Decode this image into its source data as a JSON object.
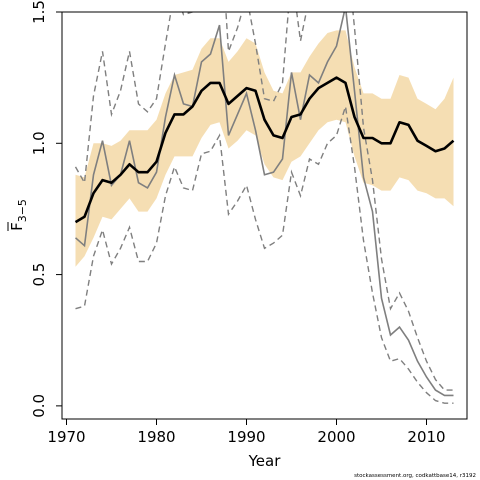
{
  "chart_data": {
    "type": "line",
    "xlabel": "Year",
    "ylabel": "F",
    "ylabel_sub": "3−5",
    "xlim": [
      1969.5,
      2014.5
    ],
    "ylim": [
      -0.05,
      1.5
    ],
    "xticks": [
      "1970",
      "1980",
      "1990",
      "2000",
      "2010"
    ],
    "yticks": [
      "0.0",
      "0.5",
      "1.0",
      "1.5"
    ],
    "x": [
      1971,
      1972,
      1973,
      1974,
      1975,
      1976,
      1977,
      1978,
      1979,
      1980,
      1981,
      1982,
      1983,
      1984,
      1985,
      1986,
      1987,
      1988,
      1989,
      1990,
      1991,
      1992,
      1993,
      1994,
      1995,
      1996,
      1997,
      1998,
      1999,
      2000,
      2001,
      2002,
      2003,
      2004,
      2005,
      2006,
      2007,
      2008,
      2009,
      2010,
      2011,
      2012,
      2013
    ],
    "series": [
      {
        "role": "band",
        "color": "#f5deb3",
        "lower": [
          0.53,
          0.57,
          0.64,
          0.72,
          0.71,
          0.75,
          0.79,
          0.74,
          0.74,
          0.79,
          0.88,
          0.95,
          0.95,
          0.95,
          1.02,
          1.07,
          1.08,
          0.98,
          1.01,
          1.05,
          1.03,
          0.92,
          0.87,
          0.86,
          0.93,
          0.95,
          1.0,
          1.05,
          1.08,
          1.09,
          1.08,
          0.95,
          0.85,
          0.84,
          0.82,
          0.82,
          0.87,
          0.86,
          0.82,
          0.81,
          0.79,
          0.79,
          0.76
        ]
      },
      {
        "role": "band",
        "color": "#f5deb3",
        "upper": [
          0.88,
          0.87,
          1.0,
          1.0,
          0.99,
          1.01,
          1.05,
          1.05,
          1.05,
          1.09,
          1.19,
          1.26,
          1.27,
          1.28,
          1.36,
          1.4,
          1.4,
          1.31,
          1.35,
          1.4,
          1.38,
          1.27,
          1.2,
          1.19,
          1.27,
          1.27,
          1.33,
          1.38,
          1.42,
          1.43,
          1.43,
          1.29,
          1.19,
          1.19,
          1.17,
          1.17,
          1.26,
          1.25,
          1.17,
          1.15,
          1.13,
          1.17,
          1.25
        ]
      },
      {
        "role": "median",
        "color": "#000000",
        "values": [
          0.7,
          0.72,
          0.81,
          0.86,
          0.85,
          0.88,
          0.92,
          0.89,
          0.89,
          0.93,
          1.04,
          1.11,
          1.11,
          1.14,
          1.2,
          1.23,
          1.23,
          1.15,
          1.18,
          1.21,
          1.2,
          1.09,
          1.03,
          1.02,
          1.1,
          1.11,
          1.17,
          1.21,
          1.23,
          1.25,
          1.23,
          1.1,
          1.02,
          1.02,
          1.0,
          1.0,
          1.08,
          1.07,
          1.01,
          0.99,
          0.97,
          0.98,
          1.01
        ]
      },
      {
        "role": "estimate",
        "color": "#7f7f7f",
        "values": [
          0.64,
          0.61,
          0.88,
          1.01,
          0.84,
          0.88,
          1.01,
          0.85,
          0.83,
          0.89,
          1.1,
          1.26,
          1.15,
          1.14,
          1.31,
          1.34,
          1.45,
          1.03,
          1.11,
          1.19,
          1.05,
          0.88,
          0.89,
          0.94,
          1.27,
          1.09,
          1.26,
          1.23,
          1.31,
          1.37,
          1.52,
          1.2,
          0.87,
          0.74,
          0.41,
          0.27,
          0.3,
          0.25,
          0.17,
          0.11,
          0.06,
          0.04,
          0.04
        ]
      },
      {
        "role": "interval",
        "color": "#7f7f7f",
        "values": [
          0.91,
          0.85,
          1.18,
          1.35,
          1.11,
          1.2,
          1.35,
          1.15,
          1.12,
          1.17,
          1.38,
          1.58,
          1.49,
          1.5,
          1.67,
          1.75,
          1.88,
          1.35,
          1.44,
          1.56,
          1.38,
          1.17,
          1.16,
          1.23,
          1.65,
          1.39,
          1.56,
          1.52,
          1.6,
          1.64,
          1.79,
          1.44,
          1.06,
          0.86,
          0.56,
          0.37,
          0.43,
          0.36,
          0.26,
          0.17,
          0.1,
          0.06,
          0.06
        ]
      },
      {
        "role": "interval",
        "color": "#7f7f7f",
        "values": [
          0.37,
          0.38,
          0.57,
          0.67,
          0.54,
          0.6,
          0.68,
          0.55,
          0.55,
          0.62,
          0.8,
          0.91,
          0.83,
          0.82,
          0.96,
          0.97,
          1.03,
          0.73,
          0.78,
          0.84,
          0.71,
          0.6,
          0.62,
          0.65,
          0.89,
          0.8,
          0.94,
          0.92,
          1.0,
          1.03,
          1.14,
          0.91,
          0.63,
          0.43,
          0.26,
          0.17,
          0.18,
          0.14,
          0.09,
          0.05,
          0.02,
          0.01,
          0.01
        ]
      }
    ]
  },
  "credit": "stockassessment.org,  codkattbase14, r3192"
}
